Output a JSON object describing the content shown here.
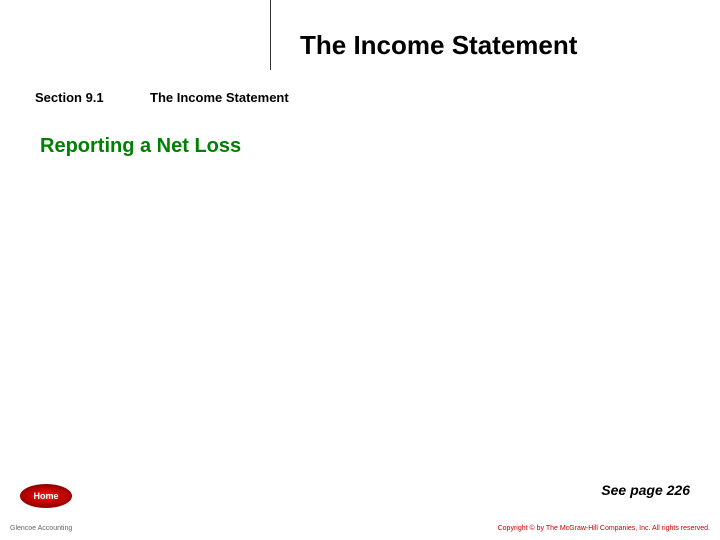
{
  "header": {
    "chapter_title": "The Income Statement",
    "line_color": "#333333"
  },
  "section": {
    "label": "Section 9.1",
    "title": "The Income Statement"
  },
  "subtitle": {
    "text": "Reporting a Net Loss",
    "color": "#008000",
    "fontsize": 20
  },
  "see_page": {
    "text": "See page 226",
    "fontsize": 14
  },
  "home_button": {
    "label": "Home",
    "bg_color": "#cc0000",
    "text_color": "#ffffff"
  },
  "footer": {
    "left": "Glencoe Accounting",
    "right": "Copyright © by The McGraw-Hill Companies, Inc. All rights reserved."
  },
  "colors": {
    "background": "#ffffff",
    "text": "#000000",
    "accent_green": "#008000",
    "accent_red": "#cc0000",
    "footer_left_color": "#666666"
  }
}
